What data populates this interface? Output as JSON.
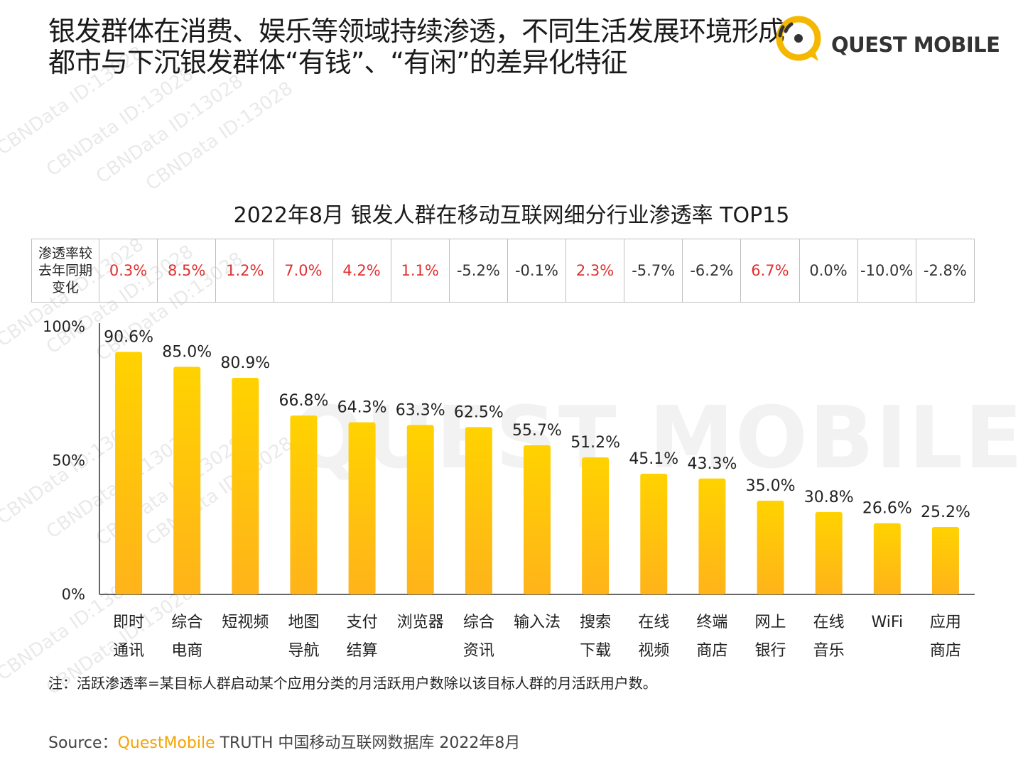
{
  "header": {
    "title_line1": "银发群体在消费、娱乐等领域持续渗透，不同生活发展环境形成",
    "title_line2": "都市与下沉银发群体“有钱”、“有闲”的差异化特征"
  },
  "logo": {
    "text": "QUEST MOBILE",
    "accent": "#f5b800"
  },
  "watermark": {
    "text": "CBNData ID:13028",
    "big_text": "QUEST MOBILE"
  },
  "chart_data": {
    "type": "bar",
    "title": "2022年8月 银发人群在移动互联网细分行业渗透率 TOP15",
    "categories": [
      [
        "即时",
        "通讯"
      ],
      [
        "综合",
        "电商"
      ],
      [
        "短视频",
        ""
      ],
      [
        "地图",
        "导航"
      ],
      [
        "支付",
        "结算"
      ],
      [
        "浏览器",
        ""
      ],
      [
        "综合",
        "资讯"
      ],
      [
        "输入法",
        ""
      ],
      [
        "搜索",
        "下载"
      ],
      [
        "在线",
        "视频"
      ],
      [
        "终端",
        "商店"
      ],
      [
        "网上",
        "银行"
      ],
      [
        "在线",
        "音乐"
      ],
      [
        "WiFi",
        ""
      ],
      [
        "应用",
        "商店"
      ]
    ],
    "values": [
      90.6,
      85.0,
      80.9,
      66.8,
      64.3,
      63.3,
      62.5,
      55.7,
      51.2,
      45.1,
      43.3,
      35.0,
      30.8,
      26.6,
      25.2
    ],
    "value_labels": [
      "90.6%",
      "85.0%",
      "80.9%",
      "66.8%",
      "64.3%",
      "63.3%",
      "62.5%",
      "55.7%",
      "51.2%",
      "45.1%",
      "43.3%",
      "35.0%",
      "30.8%",
      "26.6%",
      "25.2%"
    ],
    "ylim": [
      0,
      100
    ],
    "yticks": [
      "0%",
      "50%",
      "100%"
    ],
    "ytick_values": [
      0,
      50,
      100
    ],
    "bar_color_top": "#ffd200",
    "bar_color_bottom": "#ffb31a",
    "change_row": {
      "header": "渗透率较去年同期变化",
      "values": [
        "0.3%",
        "8.5%",
        "1.2%",
        "7.0%",
        "4.2%",
        "1.1%",
        "-5.2%",
        "-0.1%",
        "2.3%",
        "-5.7%",
        "-6.2%",
        "6.7%",
        "0.0%",
        "-10.0%",
        "-2.8%"
      ],
      "positive_color": "#e03030"
    }
  },
  "note": "注：活跃渗透率=某目标人群启动某个应用分类的月活跃用户数除以该目标人群的月活跃用户数。",
  "source": {
    "prefix": "Source：",
    "brand": "QuestMobile",
    "rest": " TRUTH 中国移动互联网数据库 2022年8月"
  }
}
